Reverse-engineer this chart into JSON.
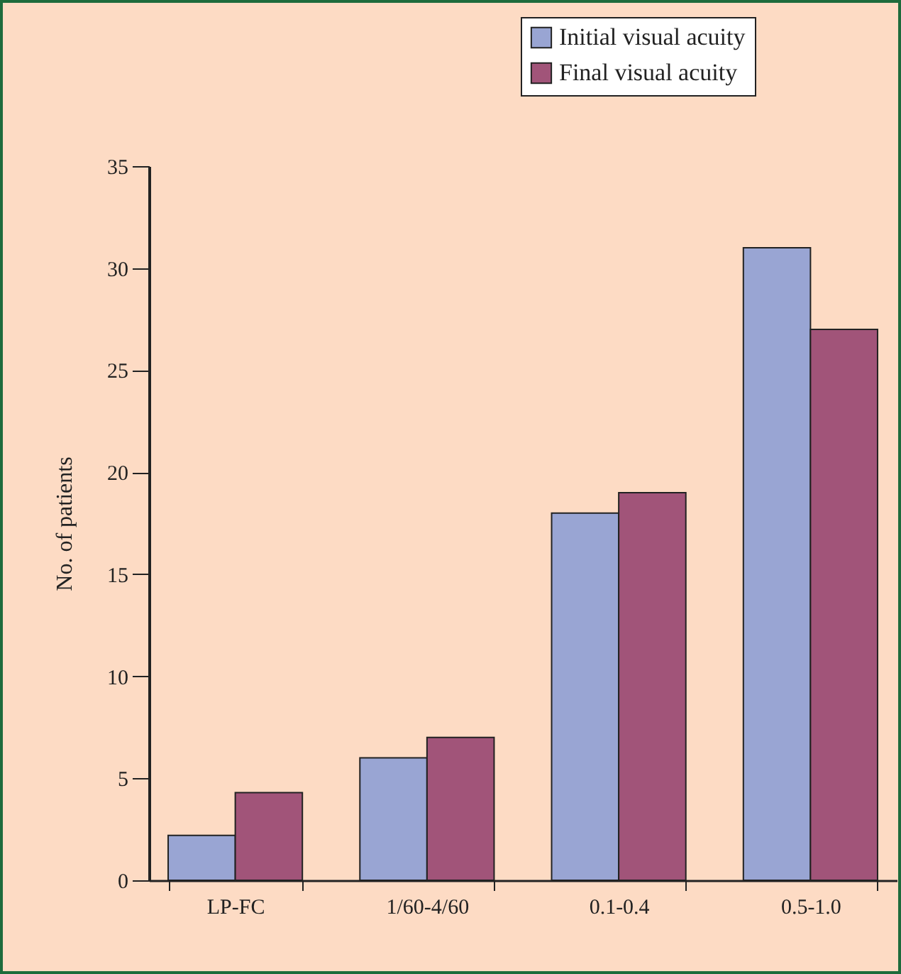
{
  "chart_data": {
    "type": "bar",
    "ylabel": "No. of patients",
    "categories": [
      "LP-FC",
      "1/60-4/60",
      "0.1-0.4",
      "0.5-1.0"
    ],
    "series": [
      {
        "name": "Initial visual acuity",
        "color": "#99a5d3",
        "values": [
          2.2,
          6,
          18,
          31
        ]
      },
      {
        "name": "Final visual acuity",
        "color": "#a15479",
        "values": [
          4.3,
          7,
          19,
          27
        ]
      }
    ],
    "ylim": [
      0,
      35
    ],
    "yticks": [
      0,
      5,
      10,
      15,
      20,
      25,
      30,
      35
    ],
    "grid": false,
    "legend": "top right"
  }
}
